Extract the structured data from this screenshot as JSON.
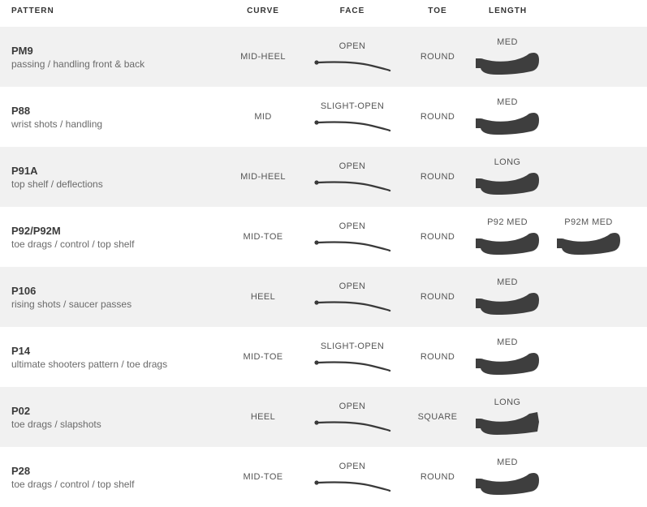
{
  "colors": {
    "page_bg": "#ffffff",
    "alt_row_bg": "#f1f1f1",
    "header_text": "#333333",
    "name_text": "#3a3a3a",
    "desc_text": "#6a6a6a",
    "cell_text": "#555555",
    "blade_fill": "#3e3e3e",
    "curve_stroke": "#3a3a3a"
  },
  "headers": {
    "pattern": "PATTERN",
    "curve": "CURVE",
    "face": "FACE",
    "toe": "TOE",
    "length": "LENGTH"
  },
  "rows": [
    {
      "name": "PM9",
      "desc": "passing / handling front & back",
      "curve": "MID-HEEL",
      "face": "OPEN",
      "toe": "ROUND",
      "lengths": [
        {
          "label": "MED"
        }
      ]
    },
    {
      "name": "P88",
      "desc": "wrist shots / handling",
      "curve": "MID",
      "face": "SLIGHT-OPEN",
      "toe": "ROUND",
      "lengths": [
        {
          "label": "MED"
        }
      ]
    },
    {
      "name": "P91A",
      "desc": "top shelf / deflections",
      "curve": "MID-HEEL",
      "face": "OPEN",
      "toe": "ROUND",
      "lengths": [
        {
          "label": "LONG"
        }
      ]
    },
    {
      "name": "P92/P92M",
      "desc": "toe drags / control / top shelf",
      "curve": "MID-TOE",
      "face": "OPEN",
      "toe": "ROUND",
      "lengths": [
        {
          "label": "P92 MED"
        },
        {
          "label": "P92M MED"
        }
      ]
    },
    {
      "name": "P106",
      "desc": "rising shots / saucer passes",
      "curve": "HEEL",
      "face": "OPEN",
      "toe": "ROUND",
      "lengths": [
        {
          "label": "MED"
        }
      ]
    },
    {
      "name": "P14",
      "desc": "ultimate shooters pattern / toe drags",
      "curve": "MID-TOE",
      "face": "SLIGHT-OPEN",
      "toe": "ROUND",
      "lengths": [
        {
          "label": "MED"
        }
      ]
    },
    {
      "name": "P02",
      "desc": "toe drags / slapshots",
      "curve": "HEEL",
      "face": "OPEN",
      "toe": "SQUARE",
      "lengths": [
        {
          "label": "LONG"
        }
      ]
    },
    {
      "name": "P28",
      "desc": "toe drags / control / top shelf",
      "curve": "MID-TOE",
      "face": "OPEN",
      "toe": "ROUND",
      "lengths": [
        {
          "label": "MED"
        }
      ]
    }
  ],
  "icons": {
    "curve_svg": {
      "w": 96,
      "h": 20,
      "stroke_width": 2.2
    },
    "blade_svg": {
      "w": 82,
      "h": 34
    }
  }
}
